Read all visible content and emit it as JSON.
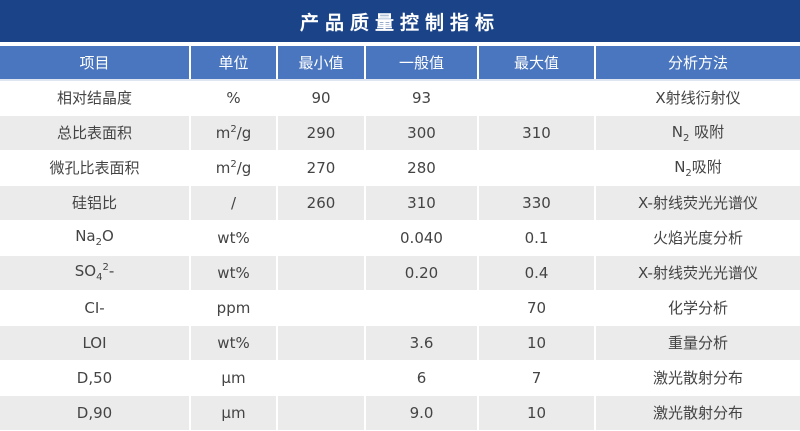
{
  "title": "产品质量控制指标",
  "headers": [
    "项目",
    "单位",
    "最小值",
    "一般值",
    "最大值",
    "分析方法"
  ],
  "rows": [
    [
      [
        {
          "t": "相对结晶度"
        }
      ],
      [
        {
          "t": "%"
        }
      ],
      [
        {
          "t": "90"
        }
      ],
      [
        {
          "t": "93"
        }
      ],
      [],
      [
        {
          "t": "X射线衍射仪"
        }
      ]
    ],
    [
      [
        {
          "t": "总比表面积"
        }
      ],
      [
        {
          "t": "m"
        },
        {
          "sup": "2"
        },
        {
          "t": "/g"
        }
      ],
      [
        {
          "t": "290"
        }
      ],
      [
        {
          "t": "300"
        }
      ],
      [
        {
          "t": "310"
        }
      ],
      [
        {
          "t": "N"
        },
        {
          "sub": "2"
        },
        {
          "t": " 吸附"
        }
      ]
    ],
    [
      [
        {
          "t": "微孔比表面积"
        }
      ],
      [
        {
          "t": "m"
        },
        {
          "sup": "2"
        },
        {
          "t": "/g"
        }
      ],
      [
        {
          "t": "270"
        }
      ],
      [
        {
          "t": "280"
        }
      ],
      [],
      [
        {
          "t": "N"
        },
        {
          "sub": "2"
        },
        {
          "t": "吸附"
        }
      ]
    ],
    [
      [
        {
          "t": "硅铝比"
        }
      ],
      [
        {
          "t": "/"
        }
      ],
      [
        {
          "t": "260"
        }
      ],
      [
        {
          "t": "310"
        }
      ],
      [
        {
          "t": "330"
        }
      ],
      [
        {
          "t": "X-射线荧光光谱仪"
        }
      ]
    ],
    [
      [
        {
          "t": "Na"
        },
        {
          "sub": "2"
        },
        {
          "t": "O"
        }
      ],
      [
        {
          "t": "wt%"
        }
      ],
      [],
      [
        {
          "t": "0.040"
        }
      ],
      [
        {
          "t": "0.1"
        }
      ],
      [
        {
          "t": "火焰光度分析"
        }
      ]
    ],
    [
      [
        {
          "t": "SO"
        },
        {
          "sub": "4"
        },
        {
          "sup": "2"
        },
        {
          "t": "-"
        }
      ],
      [
        {
          "t": "wt%"
        }
      ],
      [],
      [
        {
          "t": "0.20"
        }
      ],
      [
        {
          "t": "0.4"
        }
      ],
      [
        {
          "t": "X-射线荧光光谱仪"
        }
      ]
    ],
    [
      [
        {
          "t": "CI-"
        }
      ],
      [
        {
          "t": "ppm"
        }
      ],
      [],
      [],
      [
        {
          "t": "70"
        }
      ],
      [
        {
          "t": "化学分析"
        }
      ]
    ],
    [
      [
        {
          "t": "LOI"
        }
      ],
      [
        {
          "t": "wt%"
        }
      ],
      [],
      [
        {
          "t": "3.6"
        }
      ],
      [
        {
          "t": "10"
        }
      ],
      [
        {
          "t": "重量分析"
        }
      ]
    ],
    [
      [
        {
          "t": "D,50"
        }
      ],
      [
        {
          "t": "μm"
        }
      ],
      [],
      [
        {
          "t": "6"
        }
      ],
      [
        {
          "t": "7"
        }
      ],
      [
        {
          "t": "激光散射分布"
        }
      ]
    ],
    [
      [
        {
          "t": "D,90"
        }
      ],
      [
        {
          "t": "μm"
        }
      ],
      [],
      [
        {
          "t": "9.0"
        }
      ],
      [
        {
          "t": "10"
        }
      ],
      [
        {
          "t": "激光散射分布"
        }
      ]
    ]
  ],
  "colors": {
    "title_bg": "#1b4488",
    "header_bg": "#4a76bf",
    "alt_row": "#ebebeb"
  }
}
